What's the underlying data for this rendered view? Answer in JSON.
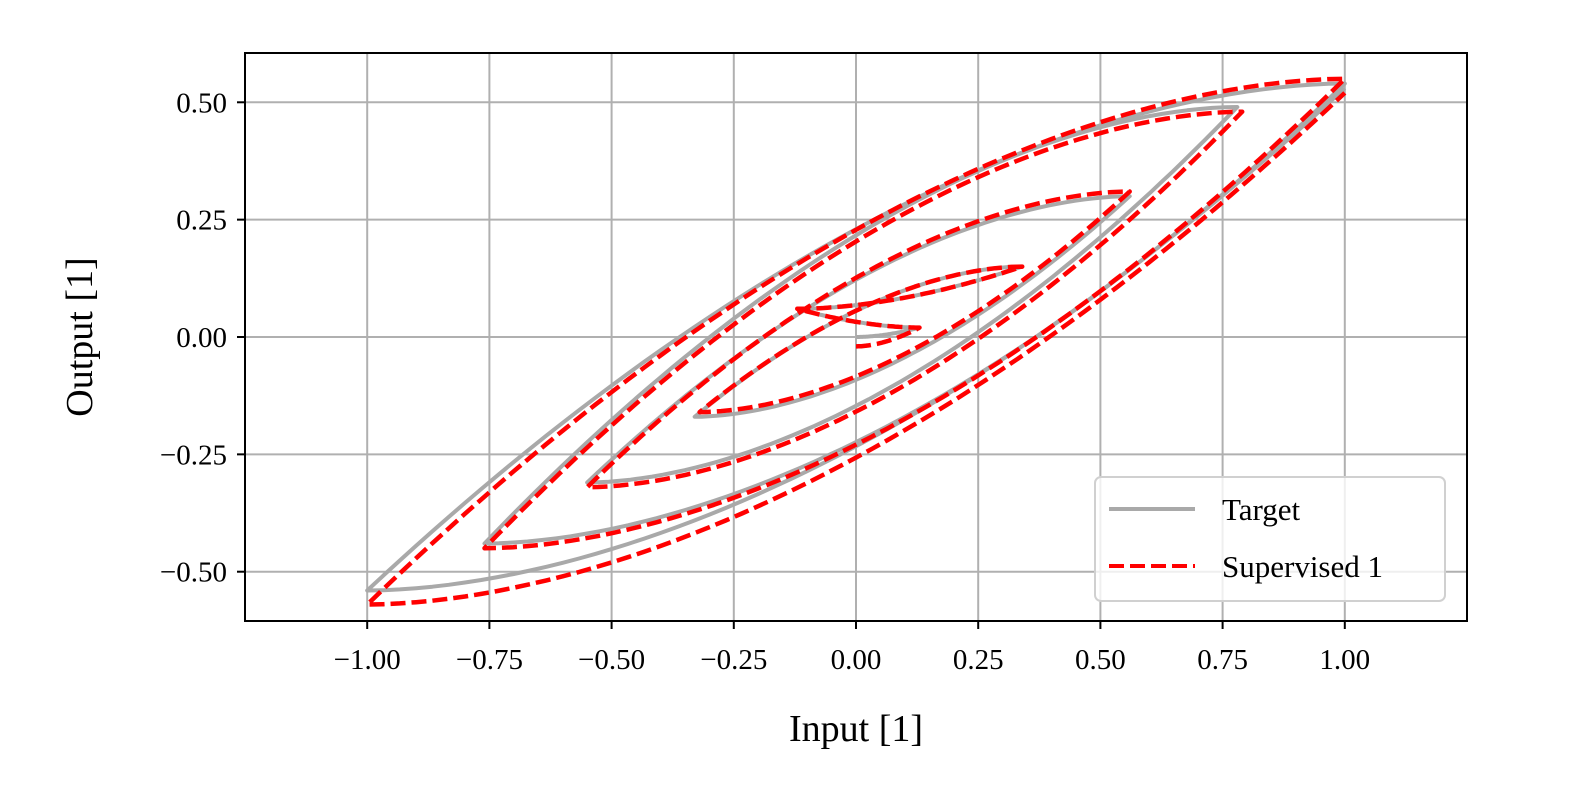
{
  "chart_data": {
    "type": "line",
    "title": "",
    "xlabel": "Input [1]",
    "ylabel": "Output [1]",
    "xlim": [
      -1.25,
      1.25
    ],
    "ylim": [
      -0.605,
      0.605
    ],
    "grid": true,
    "xticks": [
      -1.0,
      -0.75,
      -0.5,
      -0.25,
      0.0,
      0.25,
      0.5,
      0.75,
      1.0
    ],
    "xtick_labels": [
      "−1.00",
      "−0.75",
      "−0.50",
      "−0.25",
      "0.00",
      "0.25",
      "0.50",
      "0.75",
      "1.00"
    ],
    "yticks": [
      0.5,
      0.25,
      0.0,
      -0.25,
      -0.5
    ],
    "ytick_labels": [
      "0.50",
      "0.25",
      "0.00",
      "−0.25",
      "−0.50"
    ],
    "legend_placement": "lower-right",
    "branch_exponent": 1.8,
    "series": [
      {
        "name": "Target",
        "color": "#a9a9a9",
        "style": "solid",
        "turning_points": [
          [
            0.0,
            0.0
          ],
          [
            0.13,
            0.02
          ],
          [
            -0.12,
            0.06
          ],
          [
            0.34,
            0.15
          ],
          [
            -0.33,
            -0.17
          ],
          [
            0.56,
            0.3
          ],
          [
            -0.55,
            -0.31
          ],
          [
            0.78,
            0.49
          ],
          [
            -0.76,
            -0.44
          ],
          [
            1.0,
            0.54
          ],
          [
            -1.0,
            -0.54
          ],
          [
            1.0,
            0.53
          ]
        ]
      },
      {
        "name": "Supervised 1",
        "color": "#ff0000",
        "style": "dashed",
        "turning_points": [
          [
            0.0,
            -0.02
          ],
          [
            0.13,
            0.02
          ],
          [
            -0.12,
            0.06
          ],
          [
            0.34,
            0.15
          ],
          [
            -0.32,
            -0.16
          ],
          [
            0.56,
            0.31
          ],
          [
            -0.55,
            -0.32
          ],
          [
            0.79,
            0.48
          ],
          [
            -0.76,
            -0.45
          ],
          [
            1.0,
            0.55
          ],
          [
            -1.0,
            -0.57
          ],
          [
            1.0,
            0.52
          ]
        ]
      }
    ]
  }
}
